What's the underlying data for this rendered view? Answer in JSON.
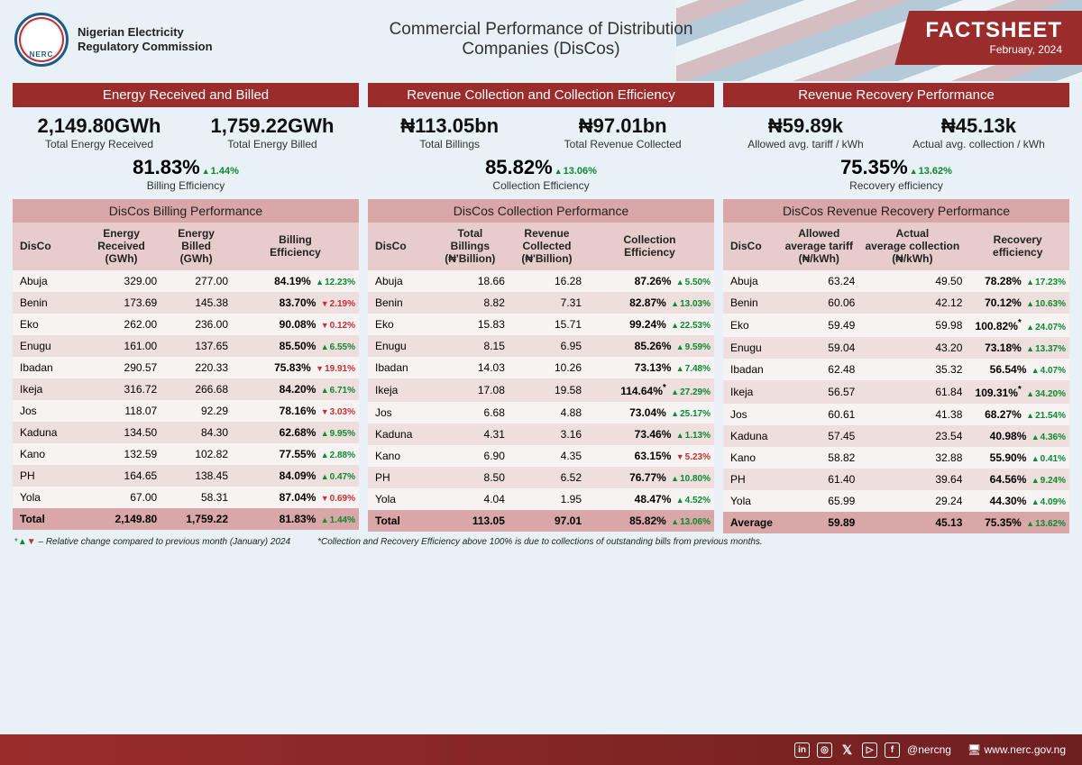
{
  "org_name_line1": "Nigerian Electricity",
  "org_name_line2": "Regulatory Commission",
  "logo_abbr": "NERC",
  "title_line1": "Commercial Performance of Distribution",
  "title_line2": "Companies (DisCos)",
  "factsheet": "FACTSHEET",
  "period": "February, 2024",
  "panels": [
    {
      "section": "Energy Received and Billed",
      "kpi_left_val": "2,149.80GWh",
      "kpi_left_lbl": "Total Energy Received",
      "kpi_right_val": "1,759.22GWh",
      "kpi_right_lbl": "Total Energy Billed",
      "kpi_center_val": "81.83%",
      "kpi_center_delta": "1.44%",
      "kpi_center_dir": "up",
      "kpi_center_lbl": "Billing Efficiency",
      "sub": "DisCos Billing Performance",
      "cols": [
        "DisCo",
        "Energy Received (GWh)",
        "Energy Billed (GWh)",
        "Billing Efficiency"
      ],
      "rows": [
        [
          "Abuja",
          "329.00",
          "277.00",
          "84.19%",
          "12.23%",
          "up"
        ],
        [
          "Benin",
          "173.69",
          "145.38",
          "83.70%",
          "2.19%",
          "down"
        ],
        [
          "Eko",
          "262.00",
          "236.00",
          "90.08%",
          "0.12%",
          "down"
        ],
        [
          "Enugu",
          "161.00",
          "137.65",
          "85.50%",
          "6.55%",
          "up"
        ],
        [
          "Ibadan",
          "290.57",
          "220.33",
          "75.83%",
          "19.91%",
          "down"
        ],
        [
          "Ikeja",
          "316.72",
          "266.68",
          "84.20%",
          "6.71%",
          "up"
        ],
        [
          "Jos",
          "118.07",
          "92.29",
          "78.16%",
          "3.03%",
          "down"
        ],
        [
          "Kaduna",
          "134.50",
          "84.30",
          "62.68%",
          "9.95%",
          "up"
        ],
        [
          "Kano",
          "132.59",
          "102.82",
          "77.55%",
          "2.88%",
          "up"
        ],
        [
          "PH",
          "164.65",
          "138.45",
          "84.09%",
          "0.47%",
          "up"
        ],
        [
          "Yola",
          "67.00",
          "58.31",
          "87.04%",
          "0.69%",
          "down"
        ]
      ],
      "total": [
        "Total",
        "2,149.80",
        "1,759.22",
        "81.83%",
        "1.44%",
        "up"
      ]
    },
    {
      "section": "Revenue Collection and Collection Efficiency",
      "kpi_left_val": "₦113.05bn",
      "kpi_left_lbl": "Total Billings",
      "kpi_right_val": "₦97.01bn",
      "kpi_right_lbl": "Total Revenue Collected",
      "kpi_center_val": "85.82%",
      "kpi_center_delta": "13.06%",
      "kpi_center_dir": "up",
      "kpi_center_lbl": "Collection Efficiency",
      "sub": "DisCos Collection Performance",
      "cols": [
        "DisCo",
        "Total Billings (₦'Billion)",
        "Revenue Collected (₦'Billion)",
        "Collection Efficiency"
      ],
      "rows": [
        [
          "Abuja",
          "18.66",
          "16.28",
          "87.26%",
          "5.50%",
          "up"
        ],
        [
          "Benin",
          "8.82",
          "7.31",
          "82.87%",
          "13.03%",
          "up"
        ],
        [
          "Eko",
          "15.83",
          "15.71",
          "99.24%",
          "22.53%",
          "up"
        ],
        [
          "Enugu",
          "8.15",
          "6.95",
          "85.26%",
          "9.59%",
          "up"
        ],
        [
          "Ibadan",
          "14.03",
          "10.26",
          "73.13%",
          "7.48%",
          "up"
        ],
        [
          "Ikeja",
          "17.08",
          "19.58",
          "114.64%*",
          "27.29%",
          "up"
        ],
        [
          "Jos",
          "6.68",
          "4.88",
          "73.04%",
          "25.17%",
          "up"
        ],
        [
          "Kaduna",
          "4.31",
          "3.16",
          "73.46%",
          "1.13%",
          "up"
        ],
        [
          "Kano",
          "6.90",
          "4.35",
          "63.15%",
          "5.23%",
          "down"
        ],
        [
          "PH",
          "8.50",
          "6.52",
          "76.77%",
          "10.80%",
          "up"
        ],
        [
          "Yola",
          "4.04",
          "1.95",
          "48.47%",
          "4.52%",
          "up"
        ]
      ],
      "total": [
        "Total",
        "113.05",
        "97.01",
        "85.82%",
        "13.06%",
        "up"
      ]
    },
    {
      "section": "Revenue Recovery Performance",
      "kpi_left_val": "₦59.89k",
      "kpi_left_lbl": "Allowed avg. tariff / kWh",
      "kpi_right_val": "₦45.13k",
      "kpi_right_lbl": "Actual avg. collection / kWh",
      "kpi_center_val": "75.35%",
      "kpi_center_delta": "13.62%",
      "kpi_center_dir": "up",
      "kpi_center_lbl": "Recovery efficiency",
      "sub": "DisCos Revenue Recovery Performance",
      "cols": [
        "DisCo",
        "Allowed average tariff (₦/kWh)",
        "Actual average collection (₦/kWh)",
        "Recovery efficiency"
      ],
      "rows": [
        [
          "Abuja",
          "63.24",
          "49.50",
          "78.28%",
          "17.23%",
          "up"
        ],
        [
          "Benin",
          "60.06",
          "42.12",
          "70.12%",
          "10.63%",
          "up"
        ],
        [
          "Eko",
          "59.49",
          "59.98",
          "100.82%*",
          "24.07%",
          "up"
        ],
        [
          "Enugu",
          "59.04",
          "43.20",
          "73.18%",
          "13.37%",
          "up"
        ],
        [
          "Ibadan",
          "62.48",
          "35.32",
          "56.54%",
          "4.07%",
          "up"
        ],
        [
          "Ikeja",
          "56.57",
          "61.84",
          "109.31%*",
          "34.20%",
          "up"
        ],
        [
          "Jos",
          "60.61",
          "41.38",
          "68.27%",
          "21.54%",
          "up"
        ],
        [
          "Kaduna",
          "57.45",
          "23.54",
          "40.98%",
          "4.36%",
          "up"
        ],
        [
          "Kano",
          "58.82",
          "32.88",
          "55.90%",
          "0.41%",
          "up"
        ],
        [
          "PH",
          "61.40",
          "39.64",
          "64.56%",
          "9.24%",
          "up"
        ],
        [
          "Yola",
          "65.99",
          "29.24",
          "44.30%",
          "4.09%",
          "up"
        ]
      ],
      "total": [
        "Average",
        "59.89",
        "45.13",
        "75.35%",
        "13.62%",
        "up"
      ]
    }
  ],
  "footnote1_prefix": "*▲▼ – ",
  "footnote1": "Relative change compared to previous month (January) 2024",
  "footnote2": "*Collection and Recovery Efficiency above 100% is due to collections of outstanding bills from previous months.",
  "social_handle": "@nercng",
  "website": "www.nerc.gov.ng"
}
